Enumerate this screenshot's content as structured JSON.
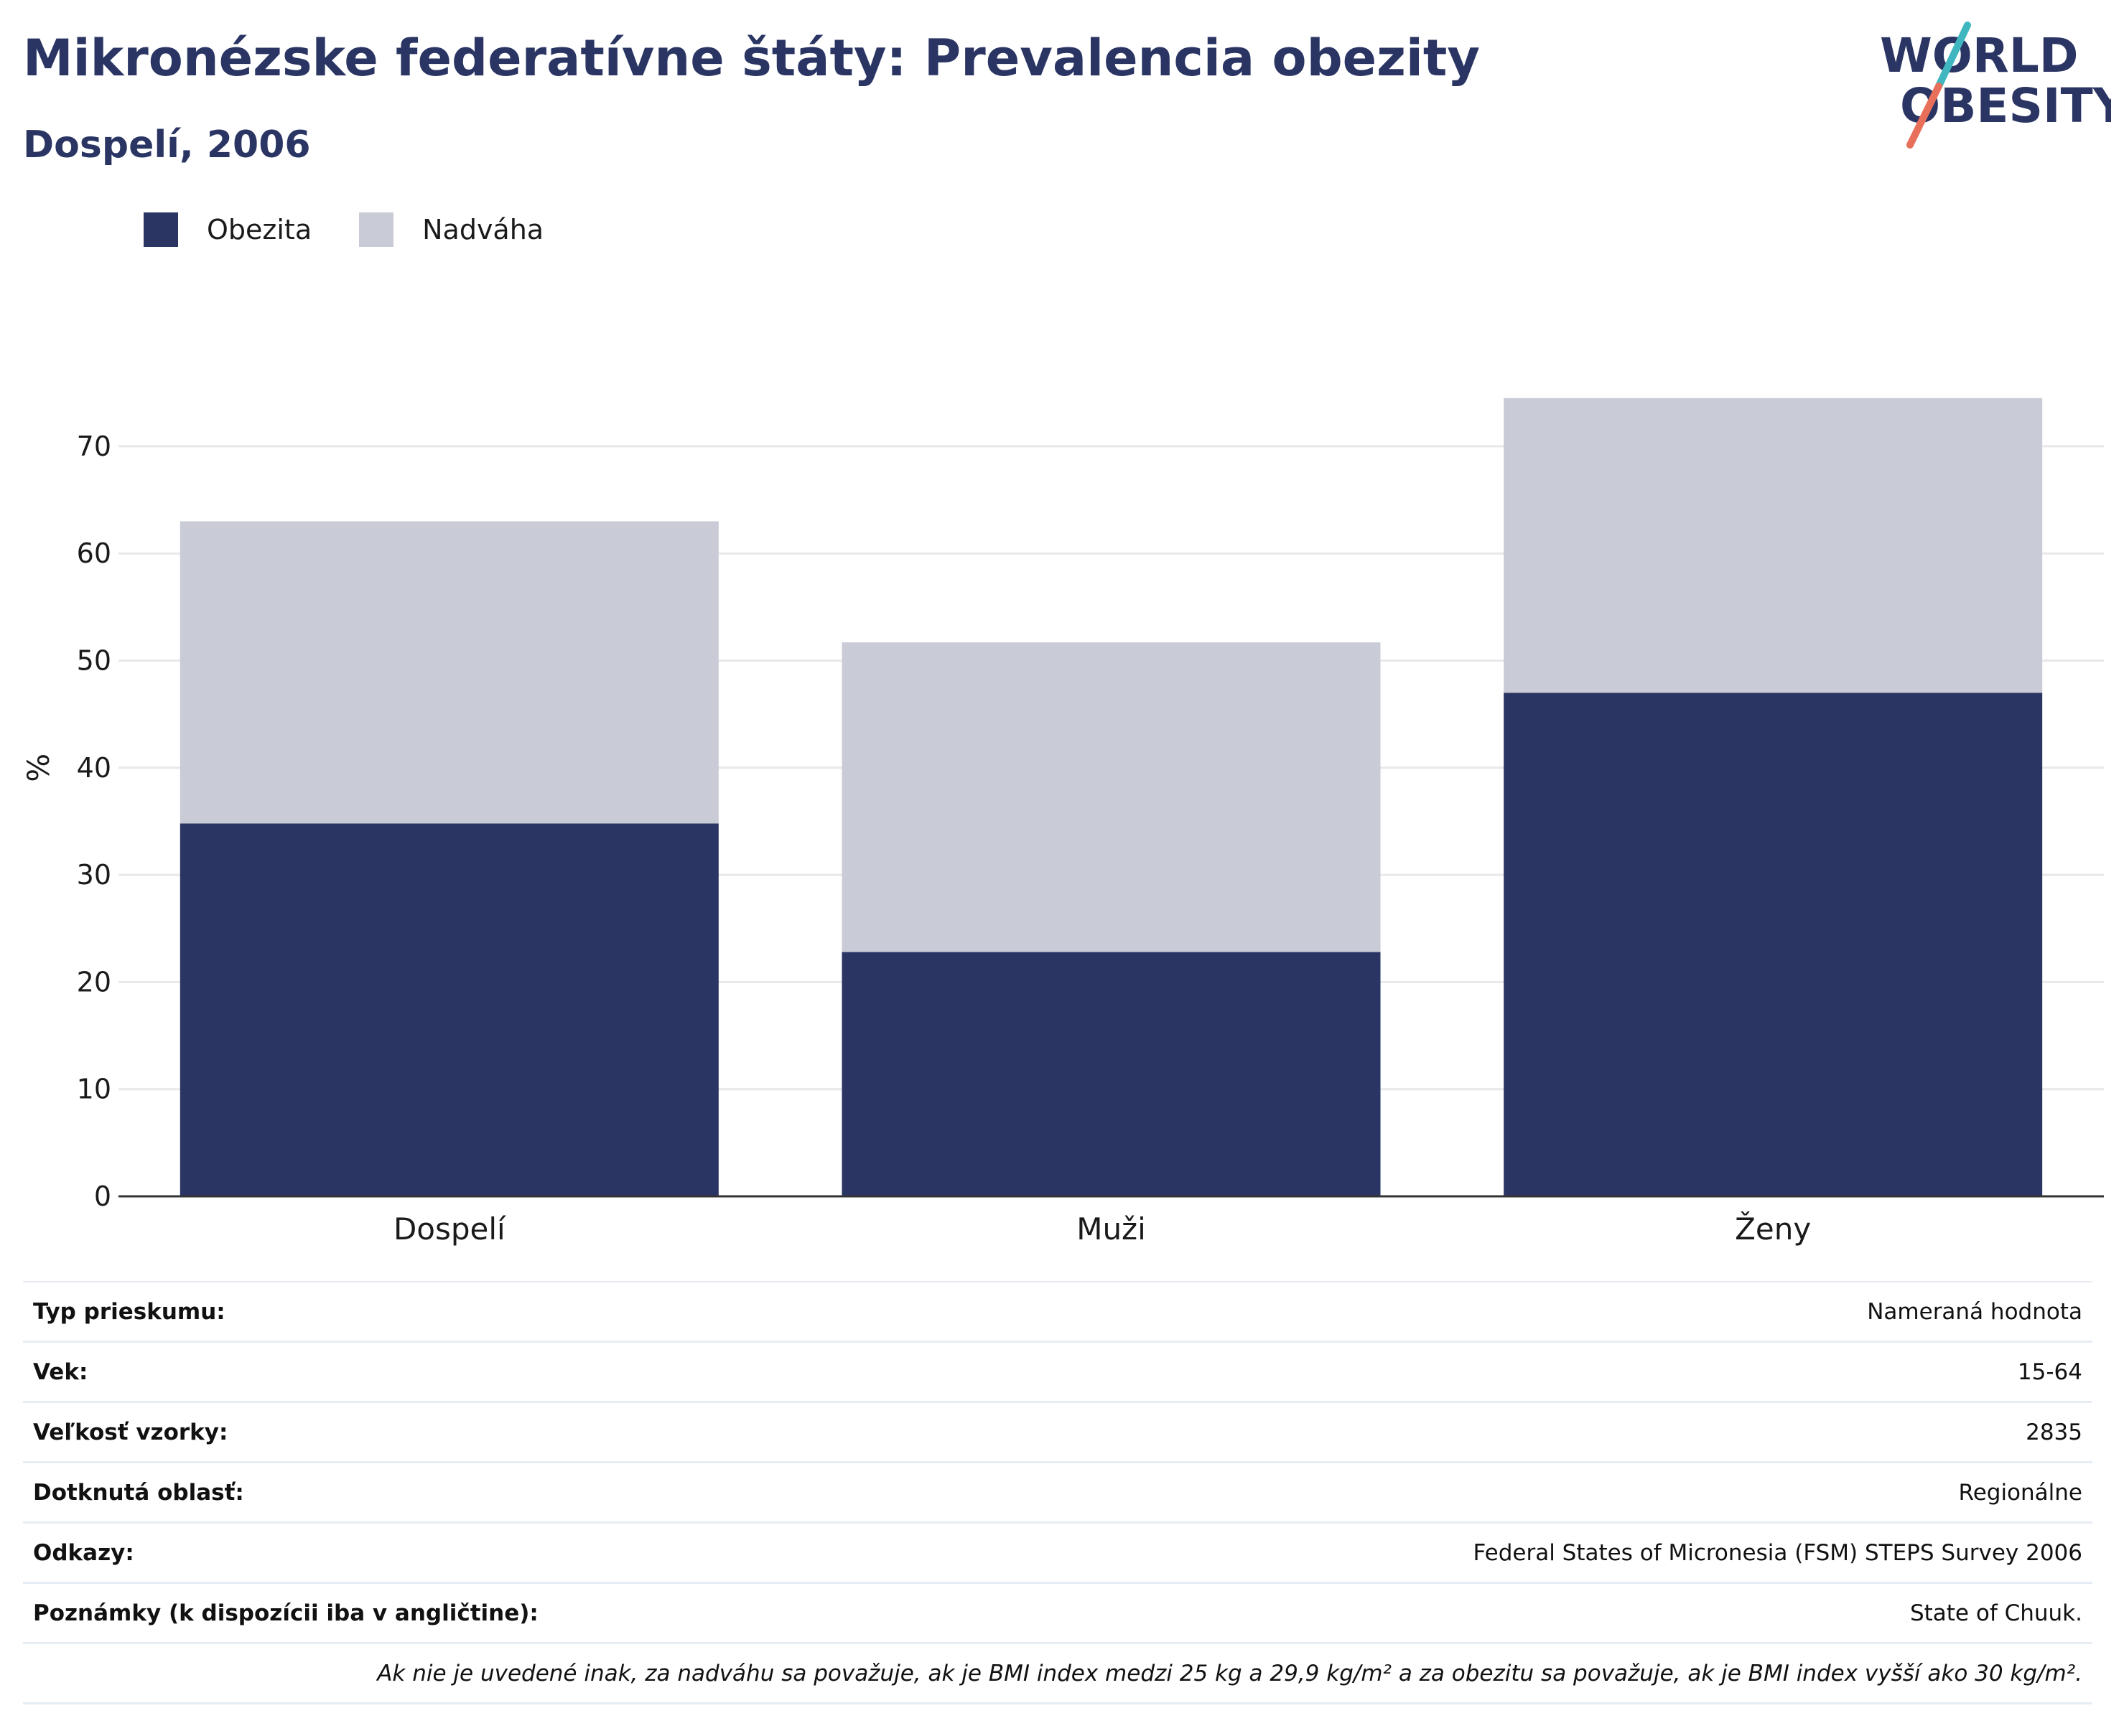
{
  "header": {
    "title": "Mikronézske federatívne štáty: Prevalencia obezity",
    "subtitle": "Dospelí, 2006"
  },
  "logo": {
    "line1": "WORLD",
    "line2": "OBESITY",
    "colors": {
      "text": "#2a3564",
      "slash_top": "#3fb6c0",
      "slash_bottom": "#e8705a"
    }
  },
  "colors": {
    "obesity": "#2a3564",
    "overweight": "#c9cbd6",
    "grid": "#e8e8ec",
    "axis": "#333333"
  },
  "legend": [
    {
      "label": "Obezita",
      "color": "#2a3564"
    },
    {
      "label": "Nadváha",
      "color": "#c9cbd6"
    }
  ],
  "chart_data": {
    "type": "bar",
    "stacked": true,
    "categories": [
      "Dospelí",
      "Muži",
      "Ženy"
    ],
    "series": [
      {
        "name": "Obezita",
        "values": [
          34.8,
          22.8,
          47.0
        ]
      },
      {
        "name": "Nadváha",
        "values": [
          28.2,
          28.9,
          27.5
        ]
      }
    ],
    "xlabel": "",
    "ylabel": "%",
    "ylim": [
      0,
      80
    ],
    "yticks": [
      0,
      10,
      20,
      30,
      40,
      50,
      60,
      70
    ],
    "grid": true,
    "legend_position": "top-left"
  },
  "info": {
    "rows": [
      {
        "label": "Typ prieskumu:",
        "value": "Nameraná hodnota"
      },
      {
        "label": "Vek:",
        "value": "15-64"
      },
      {
        "label": "Veľkosť vzorky:",
        "value": "2835"
      },
      {
        "label": "Dotknutá oblasť:",
        "value": "Regionálne"
      },
      {
        "label": "Odkazy:",
        "value": "Federal States of Micronesia (FSM) STEPS Survey 2006"
      },
      {
        "label": "Poznámky (k dispozícii iba v angličtine):",
        "value": "State of Chuuk."
      }
    ],
    "footnote": "Ak nie je uvedené inak, za nadváhu sa považuje, ak je BMI index medzi 25 kg a 29,9 kg/m² a za obezitu sa považuje, ak je BMI index vyšší ako 30 kg/m²."
  }
}
